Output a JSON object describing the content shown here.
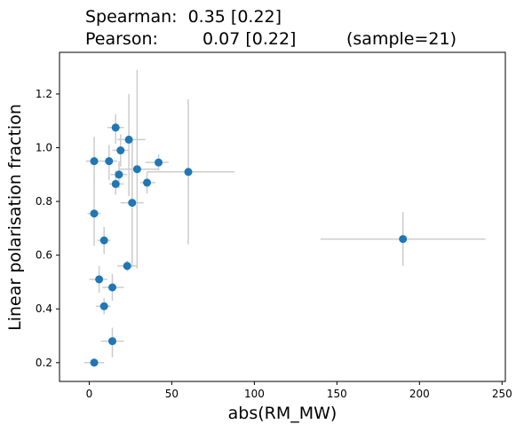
{
  "chart_data": {
    "type": "scatter",
    "title_lines": [
      {
        "prefix": "Spearman:",
        "value": "0.35 [0.22]",
        "suffix": ""
      },
      {
        "prefix": "Pearson:",
        "value": "0.07 [0.22]",
        "suffix": "(sample=21)"
      }
    ],
    "xlabel": "abs(RM_MW)",
    "ylabel": "Linear polarisation fraction",
    "xlim": [
      -18,
      252
    ],
    "ylim": [
      0.13,
      1.355
    ],
    "xticks": [
      0,
      50,
      100,
      150,
      200,
      250
    ],
    "yticks": [
      0.2,
      0.4,
      0.6,
      0.8,
      1.0,
      1.2
    ],
    "xtick_labels": [
      "0",
      "50",
      "100",
      "150",
      "200",
      "250"
    ],
    "ytick_labels": [
      "0.2",
      "0.4",
      "0.6",
      "0.8",
      "1.0",
      "1.2"
    ],
    "grid": false,
    "marker_color": "#1f77b4",
    "errorbar_color": "#cccccc",
    "points": [
      {
        "x": 3,
        "y": 0.95,
        "xerr": [
          5,
          5
        ],
        "yerr": [
          0.08,
          0.09
        ]
      },
      {
        "x": 12,
        "y": 0.95,
        "xerr": [
          4,
          5
        ],
        "yerr": [
          0.07,
          0.06
        ]
      },
      {
        "x": 16,
        "y": 1.075,
        "xerr": [
          5,
          5
        ],
        "yerr": [
          0.06,
          0.05
        ]
      },
      {
        "x": 24,
        "y": 1.03,
        "xerr": [
          7,
          10
        ],
        "yerr": [
          0.21,
          0.17
        ]
      },
      {
        "x": 19,
        "y": 0.99,
        "xerr": [
          5,
          5
        ],
        "yerr": [
          0.06,
          0.06
        ]
      },
      {
        "x": 18,
        "y": 0.9,
        "xerr": [
          5,
          5
        ],
        "yerr": [
          0.05,
          0.05
        ]
      },
      {
        "x": 16,
        "y": 0.865,
        "xerr": [
          4,
          5
        ],
        "yerr": [
          0.04,
          0.05
        ]
      },
      {
        "x": 29,
        "y": 0.92,
        "xerr": [
          11,
          13
        ],
        "yerr": [
          0.37,
          0.37
        ]
      },
      {
        "x": 35,
        "y": 0.87,
        "xerr": [
          4,
          5
        ],
        "yerr": [
          0.04,
          0.04
        ]
      },
      {
        "x": 42,
        "y": 0.945,
        "xerr": [
          8,
          6
        ],
        "yerr": [
          0.03,
          0.03
        ]
      },
      {
        "x": 60,
        "y": 0.91,
        "xerr": [
          25,
          28
        ],
        "yerr": [
          0.27,
          0.27
        ]
      },
      {
        "x": 26,
        "y": 0.795,
        "xerr": [
          7,
          7
        ],
        "yerr": [
          0.24,
          0.24
        ]
      },
      {
        "x": 3,
        "y": 0.755,
        "xerr": [
          4,
          4
        ],
        "yerr": [
          0.12,
          0.12
        ]
      },
      {
        "x": 9,
        "y": 0.655,
        "xerr": [
          4,
          4
        ],
        "yerr": [
          0.05,
          0.05
        ]
      },
      {
        "x": 23,
        "y": 0.56,
        "xerr": [
          6,
          6
        ],
        "yerr": [
          0.02,
          0.02
        ]
      },
      {
        "x": 190,
        "y": 0.66,
        "xerr": [
          50,
          50
        ],
        "yerr": [
          0.1,
          0.1
        ]
      },
      {
        "x": 6,
        "y": 0.51,
        "xerr": [
          6,
          5
        ],
        "yerr": [
          0.05,
          0.05
        ]
      },
      {
        "x": 14,
        "y": 0.48,
        "xerr": [
          6,
          7
        ],
        "yerr": [
          0.05,
          0.05
        ]
      },
      {
        "x": 9,
        "y": 0.41,
        "xerr": [
          5,
          4
        ],
        "yerr": [
          0.03,
          0.03
        ]
      },
      {
        "x": 14,
        "y": 0.28,
        "xerr": [
          7,
          7
        ],
        "yerr": [
          0.06,
          0.05
        ]
      },
      {
        "x": 3,
        "y": 0.2,
        "xerr": [
          6,
          6
        ],
        "yerr": [
          0.01,
          0.01
        ]
      }
    ]
  }
}
